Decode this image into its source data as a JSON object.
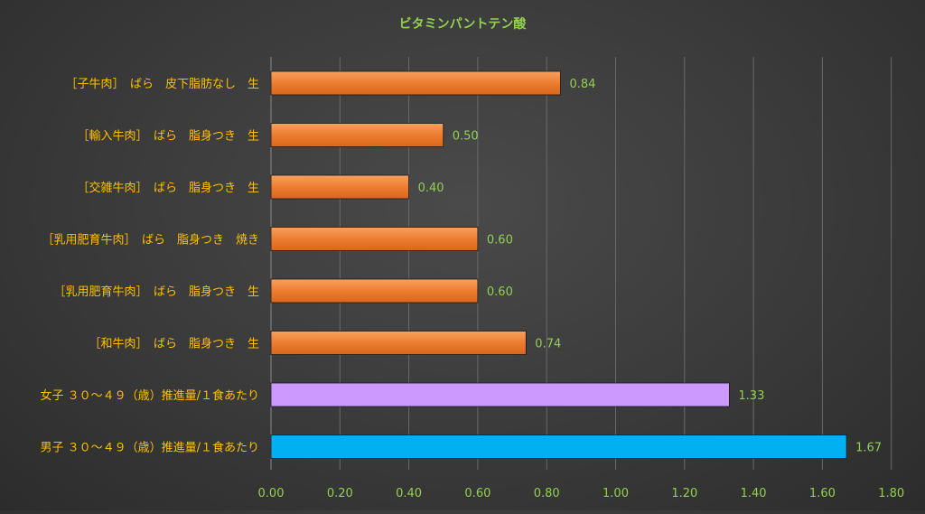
{
  "chart_data": {
    "type": "bar",
    "orientation": "horizontal",
    "title": "ビタミンパントテン酸",
    "xlabel": "",
    "ylabel": "",
    "xlim": [
      0,
      1.8
    ],
    "grid": true,
    "x_ticks": [
      "0.00",
      "0.20",
      "0.40",
      "0.60",
      "0.80",
      "1.00",
      "1.20",
      "1.40",
      "1.60",
      "1.80"
    ],
    "categories": [
      "［子牛肉］　ばら　皮下脂肪なし　生",
      "［輸入牛肉］　ばら　脂身つき　生",
      "［交雑牛肉］　ばら　脂身つき　生",
      "［乳用肥育牛肉］　ばら　脂身つき　焼き",
      "［乳用肥育牛肉］　ばら　脂身つき　生",
      "［和牛肉］　ばら　脂身つき　生",
      "女子 ３０～４９（歳）推進量/１食あたり",
      "男子 ３０～４９（歳）推進量/１食あたり"
    ],
    "values": [
      0.84,
      0.5,
      0.4,
      0.6,
      0.6,
      0.74,
      1.33,
      1.67
    ],
    "value_labels": [
      "0.84",
      "0.50",
      "0.40",
      "0.60",
      "0.60",
      "0.74",
      "1.33",
      "1.67"
    ],
    "bar_colors": [
      "#ED7D31",
      "#ED7D31",
      "#ED7D31",
      "#ED7D31",
      "#ED7D31",
      "#ED7D31",
      "#CC99FF",
      "#00B0F0"
    ],
    "colors": {
      "title": "#92D050",
      "category_label": "#FFC000",
      "tick_label": "#92D050",
      "value_label": "#92D050",
      "gridline": "#6a6a6a"
    }
  }
}
